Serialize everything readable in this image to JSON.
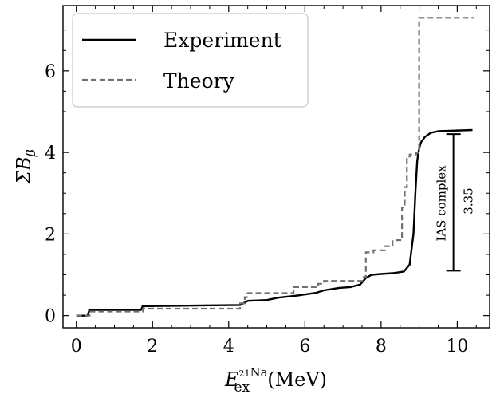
{
  "chart_data": {
    "type": "line",
    "title": "",
    "xlabel": {
      "symbol": "E",
      "subscript": "ex",
      "superscript": "21Na",
      "superscript_mass": "21",
      "superscript_element": "Na",
      "unit": "(MeV)"
    },
    "ylabel": {
      "symbol": "ΣB",
      "subscript": "β"
    },
    "xlim": [
      -0.35,
      10.85
    ],
    "ylim": [
      -0.3,
      7.6
    ],
    "xticks": [
      0,
      2,
      4,
      6,
      8,
      10
    ],
    "yticks": [
      0,
      2,
      4,
      6
    ],
    "xtick_labels": [
      "0",
      "2",
      "4",
      "6",
      "8",
      "10"
    ],
    "ytick_labels": [
      "0",
      "2",
      "4",
      "6"
    ],
    "grid": false,
    "legend_position": "top-left",
    "series": [
      {
        "name": "Experiment",
        "color": "#000000",
        "style": "solid",
        "x": [
          0.0,
          0.3,
          0.34,
          1.7,
          1.74,
          4.3,
          4.5,
          5.0,
          5.3,
          5.8,
          6.3,
          6.5,
          6.9,
          7.2,
          7.45,
          7.6,
          7.75,
          8.0,
          8.3,
          8.6,
          8.75,
          8.85,
          8.9,
          8.95,
          9.0,
          9.05,
          9.15,
          9.3,
          9.5,
          9.8,
          10.1,
          10.4
        ],
        "y": [
          0.0,
          0.0,
          0.14,
          0.14,
          0.23,
          0.26,
          0.36,
          0.38,
          0.44,
          0.49,
          0.56,
          0.62,
          0.68,
          0.7,
          0.76,
          0.92,
          1.0,
          1.02,
          1.04,
          1.08,
          1.25,
          2.0,
          3.0,
          3.8,
          4.1,
          4.25,
          4.38,
          4.48,
          4.52,
          4.53,
          4.54,
          4.55
        ]
      },
      {
        "name": "Theory",
        "color": "#707070",
        "style": "dashed",
        "steps_x": [
          0.0,
          0.35,
          1.75,
          4.3,
          4.42,
          4.5,
          5.7,
          6.35,
          6.5,
          7.55,
          7.6,
          7.8,
          8.1,
          8.3,
          8.55,
          8.62,
          8.68,
          8.75,
          8.92,
          9.0,
          10.45
        ],
        "steps_y": [
          0.0,
          0.1,
          0.17,
          0.3,
          0.45,
          0.55,
          0.7,
          0.78,
          0.85,
          0.95,
          1.55,
          1.6,
          1.7,
          1.85,
          2.65,
          3.15,
          3.9,
          3.95,
          4.0,
          7.3,
          7.3
        ]
      }
    ],
    "annotations": [
      {
        "type": "bracket",
        "x": 9.9,
        "y_low": 1.1,
        "y_high": 4.45,
        "label": "IAS complex",
        "value_label": "3.35"
      }
    ]
  }
}
